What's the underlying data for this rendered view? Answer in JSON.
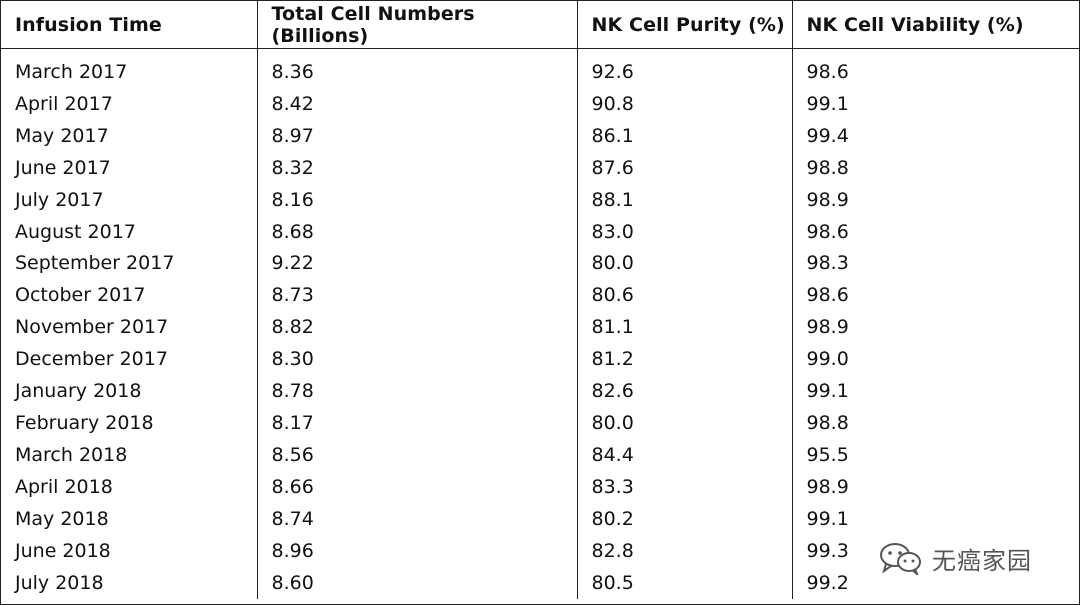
{
  "table": {
    "headers": [
      "Infusion Time",
      "Total Cell Numbers (Billions)",
      "NK Cell Purity (%)",
      "NK Cell Viability (%)"
    ],
    "rows": [
      [
        "March 2017",
        "8.36",
        "92.6",
        "98.6"
      ],
      [
        "April 2017",
        "8.42",
        "90.8",
        "99.1"
      ],
      [
        "May 2017",
        "8.97",
        "86.1",
        "99.4"
      ],
      [
        "June 2017",
        "8.32",
        "87.6",
        "98.8"
      ],
      [
        "July 2017",
        "8.16",
        "88.1",
        "98.9"
      ],
      [
        "August 2017",
        "8.68",
        "83.0",
        "98.6"
      ],
      [
        "September 2017",
        "9.22",
        "80.0",
        "98.3"
      ],
      [
        "October 2017",
        "8.73",
        "80.6",
        "98.6"
      ],
      [
        "November 2017",
        "8.82",
        "81.1",
        "98.9"
      ],
      [
        "December 2017",
        "8.30",
        "81.2",
        "99.0"
      ],
      [
        "January 2018",
        "8.78",
        "82.6",
        "99.1"
      ],
      [
        "February 2018",
        "8.17",
        "80.0",
        "98.8"
      ],
      [
        "March 2018",
        "8.56",
        "84.4",
        "95.5"
      ],
      [
        "April 2018",
        "8.66",
        "83.3",
        "98.9"
      ],
      [
        "May 2018",
        "8.74",
        "80.2",
        "99.1"
      ],
      [
        "June 2018",
        "8.96",
        "82.8",
        "99.3"
      ],
      [
        "July 2018",
        "8.60",
        "80.5",
        "99.2"
      ]
    ]
  },
  "watermark": {
    "text": "无癌家园",
    "icon": "wechat-icon"
  }
}
